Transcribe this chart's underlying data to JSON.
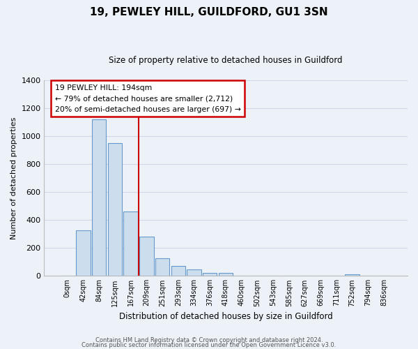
{
  "title": "19, PEWLEY HILL, GUILDFORD, GU1 3SN",
  "subtitle": "Size of property relative to detached houses in Guildford",
  "xlabel": "Distribution of detached houses by size in Guildford",
  "ylabel": "Number of detached properties",
  "bar_labels": [
    "0sqm",
    "42sqm",
    "84sqm",
    "125sqm",
    "167sqm",
    "209sqm",
    "251sqm",
    "293sqm",
    "334sqm",
    "376sqm",
    "418sqm",
    "460sqm",
    "502sqm",
    "543sqm",
    "585sqm",
    "627sqm",
    "669sqm",
    "711sqm",
    "752sqm",
    "794sqm",
    "836sqm"
  ],
  "bar_values": [
    0,
    325,
    1120,
    950,
    460,
    280,
    125,
    70,
    43,
    20,
    20,
    0,
    0,
    0,
    0,
    0,
    0,
    0,
    10,
    0,
    0
  ],
  "bar_color": "#ccdded",
  "bar_edge_color": "#6699cc",
  "ylim": [
    0,
    1400
  ],
  "yticks": [
    0,
    200,
    400,
    600,
    800,
    1000,
    1200,
    1400
  ],
  "property_line_x": 4.5,
  "annotation_title": "19 PEWLEY HILL: 194sqm",
  "annotation_line1": "← 79% of detached houses are smaller (2,712)",
  "annotation_line2": "20% of semi-detached houses are larger (697) →",
  "annotation_box_color": "#ffffff",
  "annotation_box_edge": "#cc0000",
  "vline_color": "#cc0000",
  "footer1": "Contains HM Land Registry data © Crown copyright and database right 2024.",
  "footer2": "Contains public sector information licensed under the Open Government Licence v3.0.",
  "bg_color": "#edf2f9",
  "grid_color": "#d0d8e8"
}
